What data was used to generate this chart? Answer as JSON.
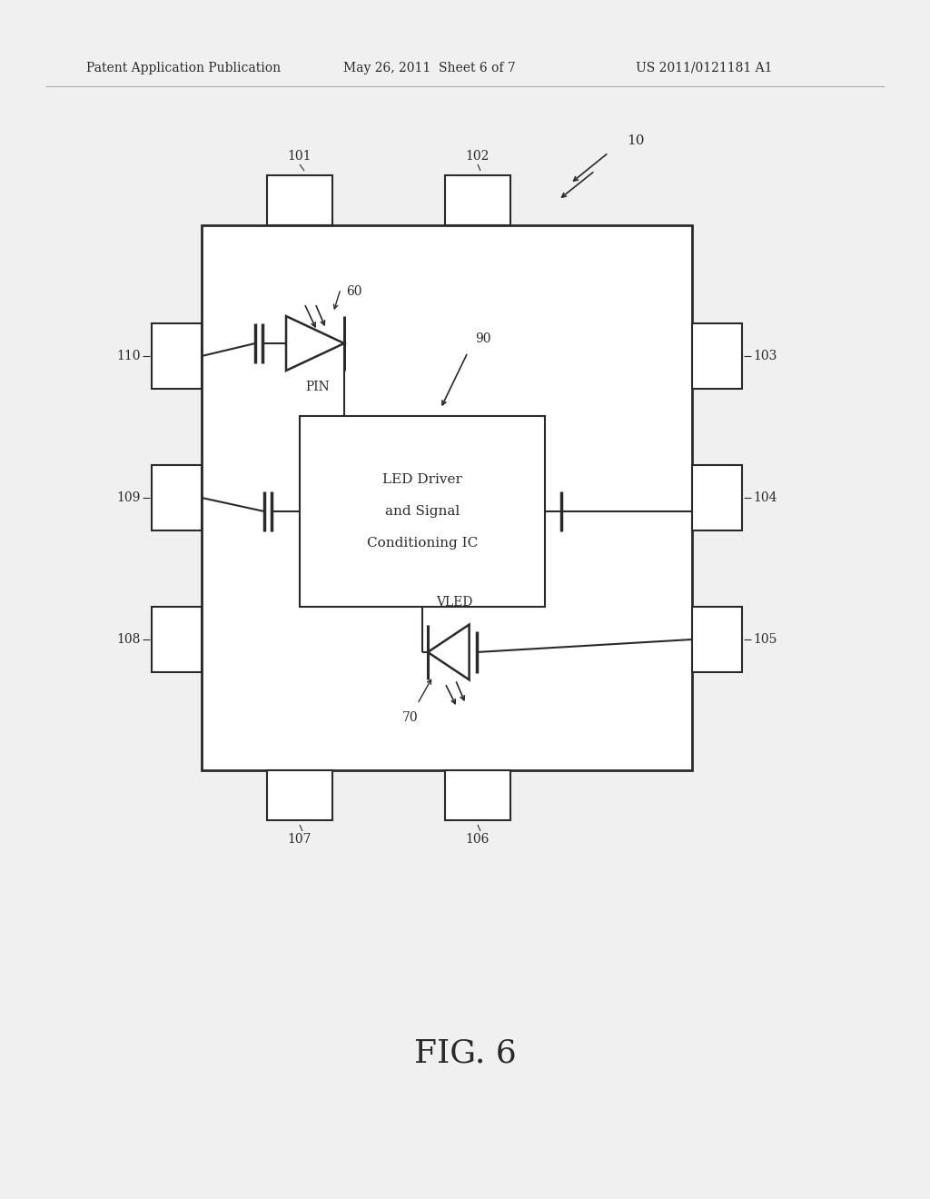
{
  "bg_color": "#f0f0f0",
  "white": "#ffffff",
  "black": "#2a2a2a",
  "header_text": "Patent Application Publication",
  "header_date": "May 26, 2011  Sheet 6 of 7",
  "header_patent": "US 2011/0121181 A1",
  "fig_label": "FIG. 6",
  "ref_10": "10",
  "ref_60": "60",
  "ref_70": "70",
  "ref_90": "90",
  "ref_101": "101",
  "ref_102": "102",
  "ref_103": "103",
  "ref_104": "104",
  "ref_105": "105",
  "ref_106": "106",
  "ref_107": "107",
  "ref_108": "108",
  "ref_109": "109",
  "ref_110": "110",
  "ic_label_line1": "LED Driver",
  "ic_label_line2": "and Signal",
  "ic_label_line3": "Conditioning IC",
  "pin_label": "PIN",
  "vled_label": "VLED"
}
